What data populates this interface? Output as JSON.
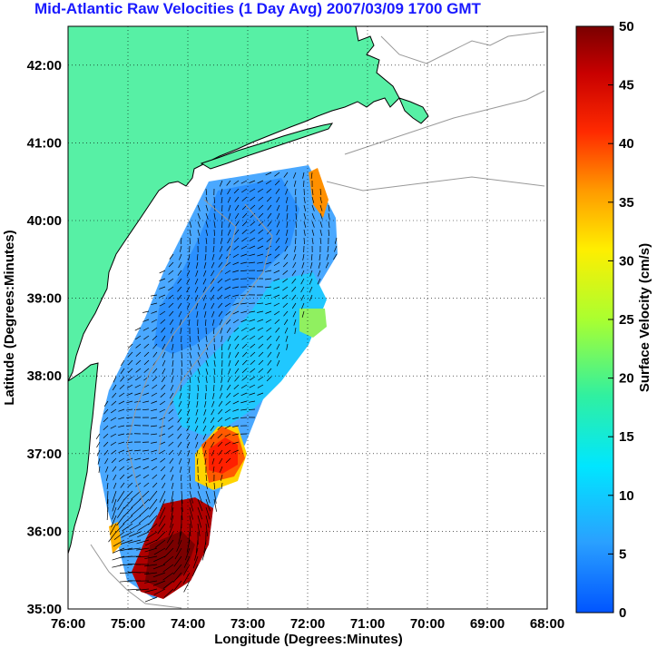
{
  "title": "Mid-Atlantic Raw Velocities (1 Day Avg) 2007/03/09 1700 GMT",
  "map": {
    "xlabel": "Longitude (Degrees:Minutes)",
    "ylabel": "Latitude (Degrees:Minutes)",
    "lon_ticks": [
      "76:00",
      "75:00",
      "74:00",
      "73:00",
      "72:00",
      "71:00",
      "70:00",
      "69:00",
      "68:00"
    ],
    "lat_ticks": [
      "42:00",
      "41:00",
      "40:00",
      "39:00",
      "38:00",
      "37:00",
      "36:00",
      "35:00"
    ],
    "lon_range": [
      -76,
      -68
    ],
    "lat_range": [
      35,
      42.5
    ],
    "grid": true,
    "land_color": "#57f0a5",
    "coast_color": "#000000",
    "bathymetry_color": "#999999"
  },
  "colorbar": {
    "label": "Surface Velocity (cm/s)",
    "ticks": [
      "0",
      "5",
      "10",
      "15",
      "20",
      "25",
      "30",
      "35",
      "40",
      "45",
      "50"
    ],
    "min": 0,
    "max": 50
  }
}
